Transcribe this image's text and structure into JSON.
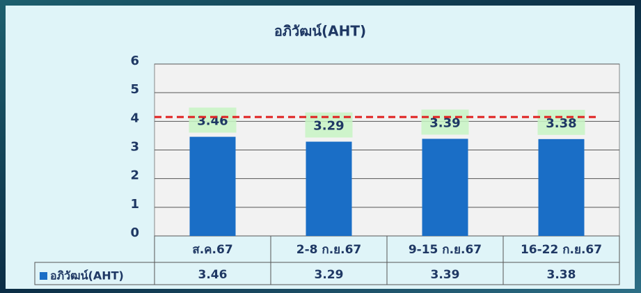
{
  "chart_data": {
    "type": "bar",
    "title": "อภิวัฒน์(AHT)",
    "categories": [
      "ส.ค.67",
      "2-8 ก.ย.67",
      "9-15 ก.ย.67",
      "16-22 ก.ย.67"
    ],
    "series": [
      {
        "name": "อภิวัฒน์(AHT)",
        "color": "#1a6ec6",
        "values": [
          3.46,
          3.29,
          3.39,
          3.38
        ]
      }
    ],
    "ylim": [
      0,
      6
    ],
    "yticks": [
      0,
      1,
      2,
      3,
      4,
      5,
      6
    ],
    "grid": true,
    "reference_line": {
      "value": 4.15,
      "color": "#e02020"
    },
    "data_table": true
  }
}
